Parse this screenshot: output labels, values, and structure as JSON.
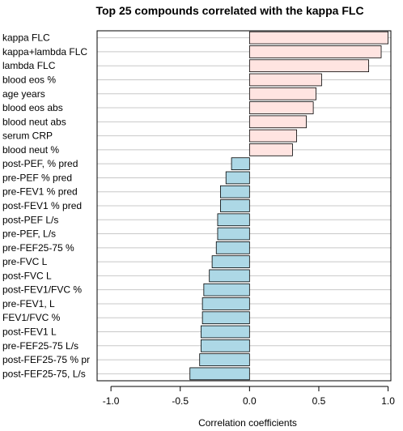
{
  "chart_data": {
    "type": "bar",
    "orientation": "horizontal",
    "title": "Top 25 compounds correlated with the kappa FLC",
    "xlabel": "Correlation coefficients",
    "ylabel": "",
    "xlim": [
      -1.1,
      1.02
    ],
    "xticks": [
      -1.0,
      -0.5,
      0.0,
      0.5,
      1.0
    ],
    "xtick_labels": [
      "-1.0",
      "-0.5",
      "0.0",
      "0.5",
      "1.0"
    ],
    "grid": true,
    "categories": [
      "kappa FLC",
      "kappa+lambda FLC",
      "lambda FLC",
      "blood eos %",
      "age years",
      "blood eos abs",
      "blood neut abs",
      "serum CRP",
      "blood neut %",
      "post-PEF, % pred",
      "pre-PEF % pred",
      "pre-FEV1 % pred",
      "post-FEV1 % pred",
      "post-PEF L/s",
      "pre-PEF, L/s",
      "pre-FEF25-75 %",
      "pre-FVC L",
      "post-FVC L",
      "post-FEV1/FVC %",
      "pre-FEV1, L",
      "FEV1/FVC %",
      "post-FEV1 L",
      "pre-FEF25-75 L/s",
      "post-FEF25-75 % pr",
      "post-FEF25-75, L/s"
    ],
    "values": [
      1.0,
      0.95,
      0.86,
      0.52,
      0.48,
      0.46,
      0.41,
      0.34,
      0.31,
      -0.13,
      -0.17,
      -0.21,
      -0.21,
      -0.23,
      -0.23,
      -0.24,
      -0.27,
      -0.29,
      -0.33,
      -0.34,
      -0.34,
      -0.35,
      -0.35,
      -0.36,
      -0.43
    ],
    "colors": {
      "positive": "#ffe4e1",
      "negative": "#add8e6",
      "outline": "#000000",
      "grid": "#c8c8c8"
    }
  }
}
